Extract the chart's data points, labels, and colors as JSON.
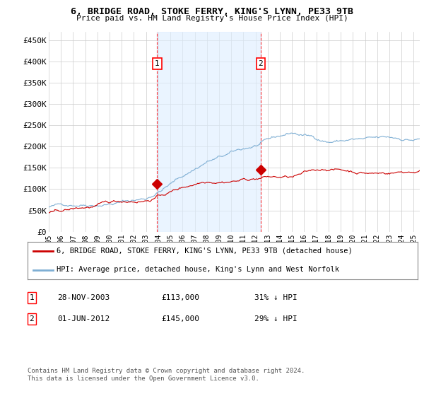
{
  "title": "6, BRIDGE ROAD, STOKE FERRY, KING'S LYNN, PE33 9TB",
  "subtitle": "Price paid vs. HM Land Registry's House Price Index (HPI)",
  "ylim": [
    0,
    470000
  ],
  "yticks": [
    0,
    50000,
    100000,
    150000,
    200000,
    250000,
    300000,
    350000,
    400000,
    450000
  ],
  "ytick_labels": [
    "£0",
    "£50K",
    "£100K",
    "£150K",
    "£200K",
    "£250K",
    "£300K",
    "£350K",
    "£400K",
    "£450K"
  ],
  "xlim_start": 1995.0,
  "xlim_end": 2025.5,
  "background_color": "#ffffff",
  "plot_bg_color": "#ffffff",
  "grid_color": "#cccccc",
  "shade_color": "#ddeeff",
  "line1_color": "#cc0000",
  "line2_color": "#7fafd4",
  "transaction1_date": 2003.91,
  "transaction1_price": 113000,
  "transaction2_date": 2012.42,
  "transaction2_price": 145000,
  "legend1": "6, BRIDGE ROAD, STOKE FERRY, KING'S LYNN, PE33 9TB (detached house)",
  "legend2": "HPI: Average price, detached house, King's Lynn and West Norfolk",
  "table_row1": [
    "1",
    "28-NOV-2003",
    "£113,000",
    "31% ↓ HPI"
  ],
  "table_row2": [
    "2",
    "01-JUN-2012",
    "£145,000",
    "29% ↓ HPI"
  ],
  "footnote1": "Contains HM Land Registry data © Crown copyright and database right 2024.",
  "footnote2": "This data is licensed under the Open Government Licence v3.0."
}
